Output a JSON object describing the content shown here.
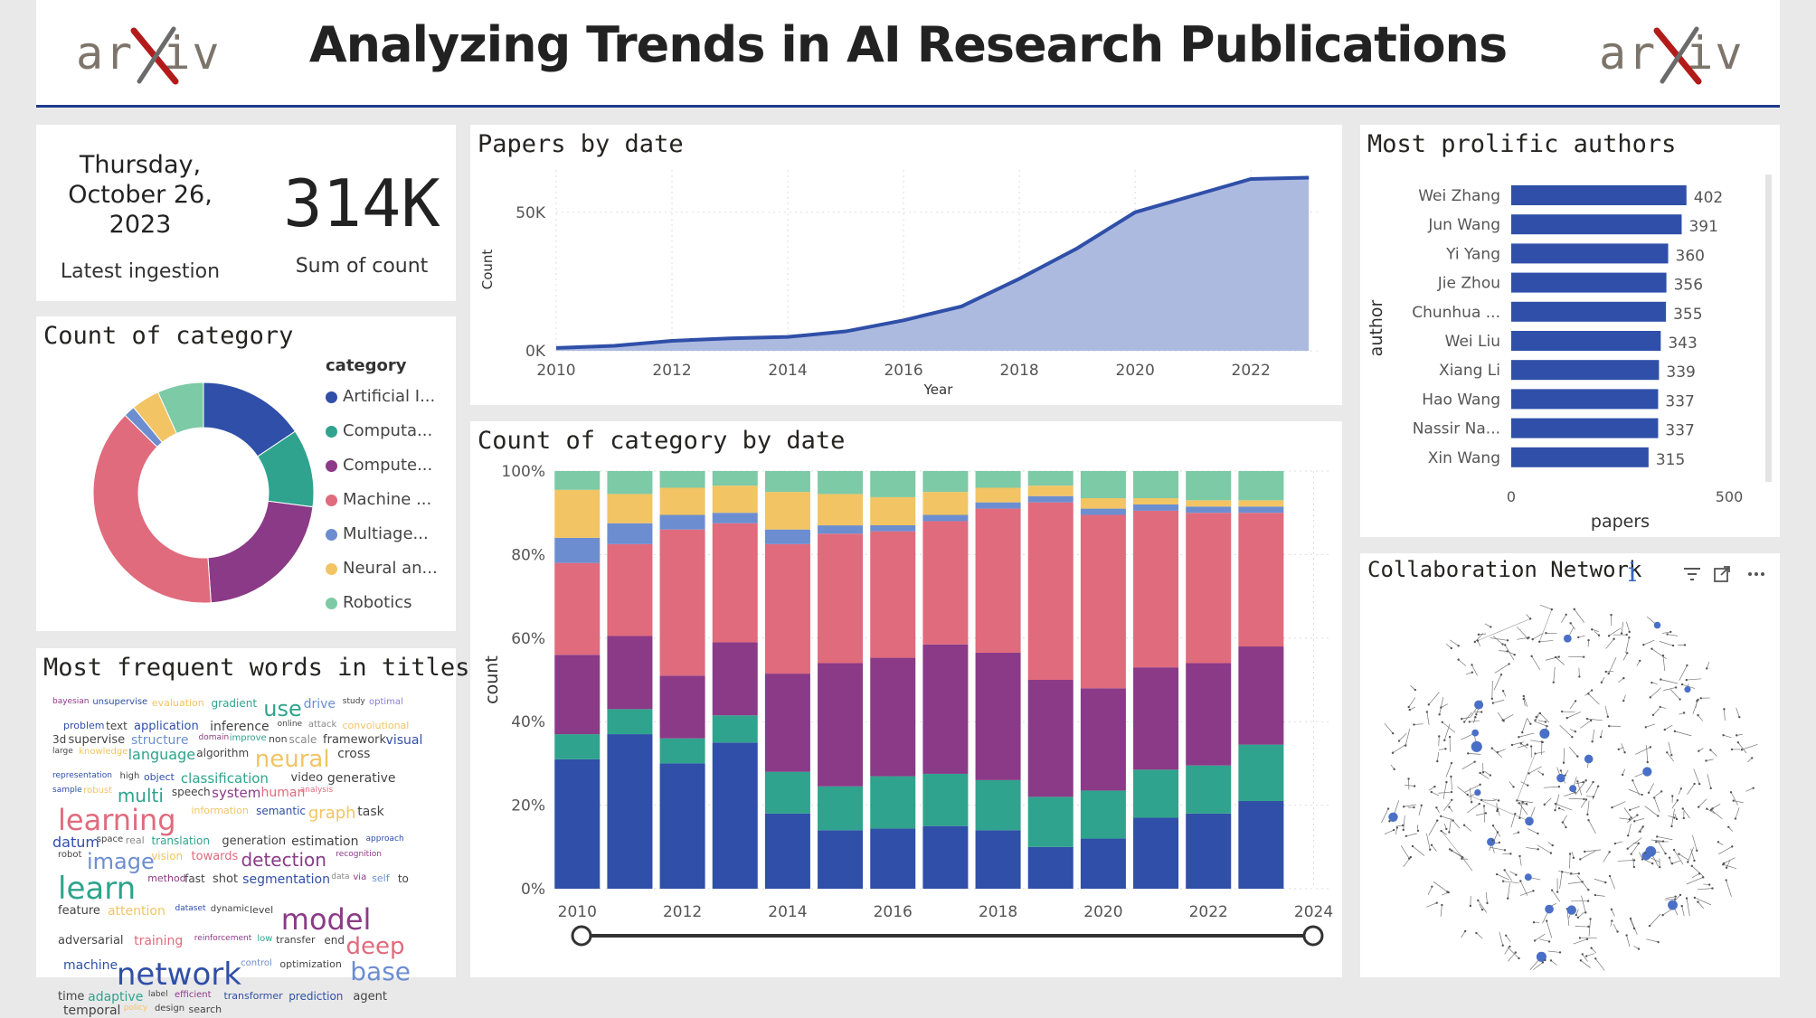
{
  "header": {
    "title": "Analyzing Trends in AI Research Publications",
    "logo_left": "arXiv",
    "logo_right": "arXiv"
  },
  "kpi": {
    "date_line1": "Thursday,",
    "date_line2": "October 26,",
    "date_line3": "2023",
    "date_label": "Latest ingestion",
    "value": "314K",
    "value_label": "Sum of count"
  },
  "category_donut": {
    "title": "Count of category",
    "legend_title": "category",
    "items": [
      {
        "label": "Artificial I...",
        "color": "#2f4fa8",
        "share": 0.15
      },
      {
        "label": "Computa...",
        "color": "#2fa38d",
        "share": 0.11
      },
      {
        "label": "Compute...",
        "color": "#8b3a87",
        "share": 0.21
      },
      {
        "label": "Machine ...",
        "color": "#e06b7d",
        "share": 0.37
      },
      {
        "label": "Multiage...",
        "color": "#6c8ed0",
        "share": 0.016
      },
      {
        "label": "Neural an...",
        "color": "#f2c464",
        "share": 0.04
      },
      {
        "label": "Robotics",
        "color": "#7ccaa6",
        "share": 0.065
      }
    ]
  },
  "papers_by_date": {
    "title": "Papers by date",
    "chart_data": {
      "type": "area",
      "xlabel": "Year",
      "ylabel": "Count",
      "x": [
        2010,
        2011,
        2012,
        2013,
        2014,
        2015,
        2016,
        2017,
        2018,
        2019,
        2020,
        2021,
        2022,
        2023
      ],
      "y": [
        1000,
        1800,
        3600,
        4500,
        5000,
        7000,
        11000,
        16000,
        26000,
        37000,
        50000,
        56000,
        62000,
        62500
      ],
      "x_ticks": [
        "2010",
        "2012",
        "2014",
        "2016",
        "2018",
        "2020",
        "2022"
      ],
      "y_ticks": [
        "0K",
        "50K"
      ],
      "ylim": [
        0,
        62000
      ],
      "line_color": "#2f4fa8",
      "fill_color": "#a8b6de"
    }
  },
  "count_by_date": {
    "title": "Count of category by date",
    "chart_data": {
      "type": "bar",
      "stacked": "100%",
      "ylabel": "count",
      "categories": [
        2010,
        2011,
        2012,
        2013,
        2014,
        2015,
        2016,
        2017,
        2018,
        2019,
        2020,
        2021,
        2022,
        2023
      ],
      "x_ticks": [
        "2010",
        "2012",
        "2014",
        "2016",
        "2018",
        "2020",
        "2022",
        "2024"
      ],
      "y_ticks": [
        "0%",
        "20%",
        "40%",
        "60%",
        "80%",
        "100%"
      ],
      "series": [
        {
          "name": "Artificial I...",
          "color": "#2f4fa8",
          "values": [
            31,
            37,
            30,
            35,
            18,
            14,
            15,
            15,
            14,
            10,
            12,
            17,
            18,
            21
          ]
        },
        {
          "name": "Computa...",
          "color": "#2fa38d",
          "values": [
            6,
            6,
            6,
            6.5,
            10,
            10.5,
            13,
            12.5,
            12,
            12,
            11.5,
            11.5,
            11.5,
            13.5
          ]
        },
        {
          "name": "Compute...",
          "color": "#8b3a87",
          "values": [
            19,
            17.5,
            15,
            17.5,
            23.5,
            29.5,
            29.5,
            31,
            30.5,
            28,
            24.5,
            24.5,
            24.5,
            23.5
          ]
        },
        {
          "name": "Machine ...",
          "color": "#e06b7d",
          "values": [
            22,
            22,
            35,
            28.5,
            31,
            31,
            31.5,
            29.5,
            34.5,
            42.5,
            41.5,
            37.5,
            36,
            32
          ]
        },
        {
          "name": "Multiage...",
          "color": "#6c8ed0",
          "values": [
            6,
            5,
            3.5,
            2.5,
            3.5,
            2,
            1.5,
            1.5,
            1.5,
            1.5,
            1.5,
            1.5,
            1.5,
            1.5
          ]
        },
        {
          "name": "Neural an...",
          "color": "#f2c464",
          "values": [
            11.5,
            7,
            6.5,
            6.5,
            9,
            7.5,
            7,
            5.5,
            3.5,
            2.5,
            2.5,
            1.5,
            1.5,
            1.5
          ]
        },
        {
          "name": "Robotics",
          "color": "#7ccaa6",
          "values": [
            4.5,
            5.5,
            4,
            3.5,
            5,
            5.5,
            6.5,
            5,
            4,
            3.5,
            6.5,
            6.5,
            7,
            7
          ]
        }
      ]
    }
  },
  "authors": {
    "title": "Most prolific authors",
    "chart_data": {
      "type": "bar",
      "orientation": "horizontal",
      "ylabel": "author",
      "xlabel": "papers",
      "categories": [
        "Wei Zhang",
        "Jun Wang",
        "Yi Yang",
        "Jie Zhou",
        "Chunhua ...",
        "Wei Liu",
        "Xiang Li",
        "Hao Wang",
        "Nassir Na...",
        "Xin Wang"
      ],
      "values": [
        402,
        391,
        360,
        356,
        355,
        343,
        339,
        337,
        337,
        315
      ],
      "value_labels": [
        "402",
        "391",
        "360",
        "356",
        "355",
        "343",
        "339",
        "337",
        "337",
        "315"
      ],
      "x_ticks": [
        "0",
        "500"
      ],
      "xlim": [
        0,
        500
      ],
      "color": "#2f4fa8"
    }
  },
  "words": {
    "title": "Most frequent words in titles",
    "items": [
      {
        "w": "bayesian",
        "c": "#8b3a87"
      },
      {
        "w": "unsupervise",
        "c": "#2f4fa8"
      },
      {
        "w": "evaluation",
        "c": "#f2c464"
      },
      {
        "w": "gradient",
        "c": "#2fa38d"
      },
      {
        "w": "use",
        "c": "#2fa38d"
      },
      {
        "w": "drive",
        "c": "#6c8ed0"
      },
      {
        "w": "study",
        "c": "#444"
      },
      {
        "w": "optimal",
        "c": "#8b7cd8"
      },
      {
        "w": "problem",
        "c": "#2f4fa8"
      },
      {
        "w": "text",
        "c": "#444"
      },
      {
        "w": "application",
        "c": "#2f4fa8"
      },
      {
        "w": "inference",
        "c": "#444"
      },
      {
        "w": "online",
        "c": "#444"
      },
      {
        "w": "attack",
        "c": "#888"
      },
      {
        "w": "convolutional",
        "c": "#f2c464"
      },
      {
        "w": "3d",
        "c": "#444"
      },
      {
        "w": "supervise",
        "c": "#444"
      },
      {
        "w": "structure",
        "c": "#6c8ed0"
      },
      {
        "w": "domain",
        "c": "#8b3a87"
      },
      {
        "w": "improve",
        "c": "#2fa38d"
      },
      {
        "w": "non",
        "c": "#444"
      },
      {
        "w": "scale",
        "c": "#888"
      },
      {
        "w": "framework",
        "c": "#444"
      },
      {
        "w": "visual",
        "c": "#2f4fa8"
      },
      {
        "w": "large",
        "c": "#444"
      },
      {
        "w": "knowledge",
        "c": "#f2c464"
      },
      {
        "w": "language",
        "c": "#2fa38d"
      },
      {
        "w": "algorithm",
        "c": "#444"
      },
      {
        "w": "neural",
        "c": "#f2c464"
      },
      {
        "w": "cross",
        "c": "#444"
      },
      {
        "w": "representation",
        "c": "#2f4fa8"
      },
      {
        "w": "high",
        "c": "#444"
      },
      {
        "w": "object",
        "c": "#2f4fa8"
      },
      {
        "w": "classification",
        "c": "#2fa38d"
      },
      {
        "w": "video",
        "c": "#444"
      },
      {
        "w": "generative",
        "c": "#444"
      },
      {
        "w": "sample",
        "c": "#2f4fa8"
      },
      {
        "w": "robust",
        "c": "#f2c464"
      },
      {
        "w": "multi",
        "c": "#2fa38d"
      },
      {
        "w": "speech",
        "c": "#444"
      },
      {
        "w": "system",
        "c": "#8b3a87"
      },
      {
        "w": "human",
        "c": "#e06b7d"
      },
      {
        "w": "analysis",
        "c": "#e06b7d"
      },
      {
        "w": "learning",
        "c": "#e06b7d"
      },
      {
        "w": "information",
        "c": "#f2c464"
      },
      {
        "w": "semantic",
        "c": "#2f4fa8"
      },
      {
        "w": "graph",
        "c": "#f2c464"
      },
      {
        "w": "task",
        "c": "#444"
      },
      {
        "w": "datum",
        "c": "#2f4fa8"
      },
      {
        "w": "space",
        "c": "#444"
      },
      {
        "w": "real",
        "c": "#888"
      },
      {
        "w": "translation",
        "c": "#2fa38d"
      },
      {
        "w": "generation",
        "c": "#444"
      },
      {
        "w": "estimation",
        "c": "#444"
      },
      {
        "w": "approach",
        "c": "#2f4fa8"
      },
      {
        "w": "robot",
        "c": "#444"
      },
      {
        "w": "image",
        "c": "#6c8ed0"
      },
      {
        "w": "vision",
        "c": "#f2c464"
      },
      {
        "w": "towards",
        "c": "#e06b7d"
      },
      {
        "w": "detection",
        "c": "#8b3a87"
      },
      {
        "w": "recognition",
        "c": "#8b3a87"
      },
      {
        "w": "learn",
        "c": "#2fa38d"
      },
      {
        "w": "method",
        "c": "#8b3a87"
      },
      {
        "w": "fast",
        "c": "#444"
      },
      {
        "w": "shot",
        "c": "#444"
      },
      {
        "w": "segmentation",
        "c": "#2f4fa8"
      },
      {
        "w": "data",
        "c": "#888"
      },
      {
        "w": "via",
        "c": "#8b3a87"
      },
      {
        "w": "self",
        "c": "#6c8ed0"
      },
      {
        "w": "to",
        "c": "#444"
      },
      {
        "w": "feature",
        "c": "#444"
      },
      {
        "w": "attention",
        "c": "#f2c464"
      },
      {
        "w": "dataset",
        "c": "#2f4fa8"
      },
      {
        "w": "dynamic",
        "c": "#444"
      },
      {
        "w": "level",
        "c": "#444"
      },
      {
        "w": "model",
        "c": "#8b3a87"
      },
      {
        "w": "adversarial",
        "c": "#444"
      },
      {
        "w": "training",
        "c": "#e06b7d"
      },
      {
        "w": "reinforcement",
        "c": "#8b3a87"
      },
      {
        "w": "low",
        "c": "#2fa38d"
      },
      {
        "w": "transfer",
        "c": "#444"
      },
      {
        "w": "end",
        "c": "#444"
      },
      {
        "w": "deep",
        "c": "#e06b7d"
      },
      {
        "w": "machine",
        "c": "#2f4fa8"
      },
      {
        "w": "network",
        "c": "#2f4fa8"
      },
      {
        "w": "control",
        "c": "#6c8ed0"
      },
      {
        "w": "optimization",
        "c": "#444"
      },
      {
        "w": "base",
        "c": "#6c8ed0"
      },
      {
        "w": "time",
        "c": "#444"
      },
      {
        "w": "adaptive",
        "c": "#2fa38d"
      },
      {
        "w": "label",
        "c": "#444"
      },
      {
        "w": "efficient",
        "c": "#8b3a87"
      },
      {
        "w": "transformer",
        "c": "#2f4fa8"
      },
      {
        "w": "prediction",
        "c": "#2f4fa8"
      },
      {
        "w": "agent",
        "c": "#444"
      },
      {
        "w": "temporal",
        "c": "#444"
      },
      {
        "w": "policy",
        "c": "#f2c464"
      },
      {
        "w": "design",
        "c": "#444"
      },
      {
        "w": "search",
        "c": "#444"
      }
    ]
  },
  "network": {
    "title": "Collaboration Network",
    "info_icon": "i"
  }
}
